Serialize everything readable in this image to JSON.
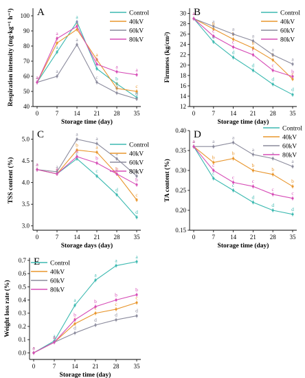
{
  "series_colors": {
    "Control": "#3bb9b0",
    "40kV": "#e8952b",
    "60kV": "#8a8a9c",
    "80kV": "#d64bb6"
  },
  "chart_data": [
    {
      "type": "line",
      "panel": "A",
      "x": [
        0,
        7,
        14,
        21,
        28,
        35
      ],
      "xlabel": "Storage time (day)",
      "ylabel": "Respiration intensity (mg·kg⁻¹ h⁻¹)",
      "xlim": [
        0,
        35
      ],
      "ylim": [
        40,
        105
      ],
      "yticks": [
        40,
        50,
        60,
        70,
        80,
        90,
        100
      ],
      "xticks": [
        0,
        7,
        14,
        21,
        28,
        35
      ],
      "legend_position": "top-right",
      "series": [
        {
          "name": "Control",
          "values": [
            56,
            76,
            96,
            65,
            55,
            46
          ],
          "labels": [
            "a",
            "a",
            "a",
            "a",
            "b",
            "d"
          ]
        },
        {
          "name": "40kV",
          "values": [
            56,
            82,
            91,
            71,
            52,
            50
          ],
          "labels": [
            "a",
            "a",
            "a",
            "a",
            "c",
            "c"
          ]
        },
        {
          "name": "60kV",
          "values": [
            56,
            60,
            81,
            56,
            49,
            45
          ],
          "labels": [
            "a",
            "a",
            "a",
            "c",
            "d",
            "d"
          ]
        },
        {
          "name": "80kV",
          "values": [
            56,
            85,
            93,
            68,
            63,
            61
          ],
          "labels": [
            "a",
            "a",
            "a",
            "b",
            "a",
            "a"
          ]
        }
      ]
    },
    {
      "type": "line",
      "panel": "B",
      "x": [
        0,
        7,
        14,
        21,
        28,
        35
      ],
      "xlabel": "Storage time (day)",
      "ylabel": "Firmness (kg/cm²)",
      "xlim": [
        0,
        35
      ],
      "ylim": [
        12,
        31
      ],
      "yticks": [
        12,
        14,
        16,
        18,
        20,
        22,
        24,
        26,
        28,
        30
      ],
      "xticks": [
        0,
        7,
        14,
        21,
        28,
        35
      ],
      "legend_position": "top-right",
      "series": [
        {
          "name": "Control",
          "values": [
            29,
            24.5,
            21.5,
            19,
            16.3,
            14.3
          ],
          "labels": [
            "a",
            "d",
            "d",
            "d",
            "d",
            "d"
          ]
        },
        {
          "name": "40kV",
          "values": [
            29,
            27,
            25,
            23.3,
            21,
            17.3
          ],
          "labels": [
            "a",
            "b",
            "b",
            "b",
            "b",
            "c"
          ]
        },
        {
          "name": "60kV",
          "values": [
            29,
            27.5,
            26,
            24.7,
            22,
            20.2
          ],
          "labels": [
            "a",
            "a",
            "a",
            "a",
            "a",
            "a"
          ]
        },
        {
          "name": "80kV",
          "values": [
            29,
            25.6,
            23.5,
            22,
            19,
            17.8
          ],
          "labels": [
            "a",
            "c",
            "c",
            "c",
            "c",
            "b"
          ]
        }
      ]
    },
    {
      "type": "line",
      "panel": "C",
      "x": [
        0,
        7,
        14,
        21,
        28,
        35
      ],
      "xlabel": "Storage days (day)",
      "ylabel": "TSS content (%)",
      "xlim": [
        0,
        35
      ],
      "ylim": [
        2.9,
        5.2
      ],
      "yticks": [
        3.0,
        3.5,
        4.0,
        4.5,
        5.0
      ],
      "xticks": [
        0,
        7,
        14,
        21,
        28,
        35
      ],
      "legend_position": "top-right",
      "series": [
        {
          "name": "Control",
          "values": [
            4.3,
            4.2,
            4.55,
            4.15,
            3.72,
            3.2
          ],
          "labels": [
            "a",
            "a",
            "c",
            "c",
            "d",
            "d"
          ]
        },
        {
          "name": "40kV",
          "values": [
            4.3,
            4.2,
            4.75,
            4.7,
            4.2,
            3.6
          ],
          "labels": [
            "a",
            "a",
            "b",
            "a",
            "b",
            "c"
          ]
        },
        {
          "name": "60kV",
          "values": [
            4.3,
            4.25,
            5.0,
            4.9,
            4.55,
            4.15
          ],
          "labels": [
            "a",
            "a",
            "a",
            "a",
            "a",
            "a"
          ]
        },
        {
          "name": "80kV",
          "values": [
            4.3,
            4.2,
            4.6,
            4.45,
            4.2,
            3.95
          ],
          "labels": [
            "a",
            "a",
            "b",
            "b",
            "c",
            "b"
          ]
        }
      ]
    },
    {
      "type": "line",
      "panel": "D",
      "x": [
        0,
        7,
        14,
        21,
        28,
        35
      ],
      "xlabel": "Storage time (day)",
      "ylabel": "TA content (%)",
      "xlim": [
        0,
        35
      ],
      "ylim": [
        0.15,
        0.4
      ],
      "yticks": [
        0.15,
        0.2,
        0.25,
        0.3,
        0.35,
        0.4
      ],
      "xticks": [
        0,
        7,
        14,
        21,
        28,
        35
      ],
      "legend_position": "top-right",
      "series": [
        {
          "name": "Control",
          "values": [
            0.36,
            0.28,
            0.25,
            0.22,
            0.2,
            0.19
          ],
          "labels": [
            "a",
            "c",
            "c",
            "d",
            "d",
            "d"
          ]
        },
        {
          "name": "40kV",
          "values": [
            0.36,
            0.32,
            0.33,
            0.3,
            0.29,
            0.26
          ],
          "labels": [
            "a",
            "b",
            "b",
            "b",
            "b",
            "b"
          ]
        },
        {
          "name": "60kV",
          "values": [
            0.36,
            0.36,
            0.37,
            0.34,
            0.33,
            0.31
          ],
          "labels": [
            "a",
            "a",
            "a",
            "a",
            "a",
            "a"
          ]
        },
        {
          "name": "80kV",
          "values": [
            0.36,
            0.3,
            0.27,
            0.26,
            0.24,
            0.23
          ],
          "labels": [
            "a",
            "c",
            "c",
            "c",
            "c",
            "c"
          ]
        }
      ]
    },
    {
      "type": "line",
      "panel": "E",
      "x": [
        0,
        7,
        14,
        21,
        28,
        35
      ],
      "xlabel": "Storage time (day)",
      "ylabel": "Weight loss rate (%)",
      "xlim": [
        0,
        35
      ],
      "ylim": [
        -0.05,
        0.72
      ],
      "yticks": [
        0.0,
        0.1,
        0.2,
        0.3,
        0.4,
        0.5,
        0.6,
        0.7
      ],
      "xticks": [
        0,
        7,
        14,
        21,
        28,
        35
      ],
      "legend_position": "top-left",
      "series": [
        {
          "name": "Control",
          "values": [
            0.0,
            0.09,
            0.36,
            0.55,
            0.66,
            0.69
          ],
          "labels": [
            "a",
            "a",
            "a",
            "a",
            "a",
            "a"
          ]
        },
        {
          "name": "40kV",
          "values": [
            0.0,
            0.08,
            0.22,
            0.3,
            0.33,
            0.38
          ],
          "labels": [
            "a",
            "a",
            "c",
            "c",
            "c",
            "c"
          ]
        },
        {
          "name": "60kV",
          "values": [
            0.0,
            0.08,
            0.15,
            0.21,
            0.25,
            0.28
          ],
          "labels": [
            "a",
            "a",
            "d",
            "d",
            "d",
            "d"
          ]
        },
        {
          "name": "80kV",
          "values": [
            0.0,
            0.08,
            0.25,
            0.35,
            0.4,
            0.44
          ],
          "labels": [
            "a",
            "a",
            "b",
            "b",
            "b",
            "b"
          ]
        }
      ]
    }
  ]
}
